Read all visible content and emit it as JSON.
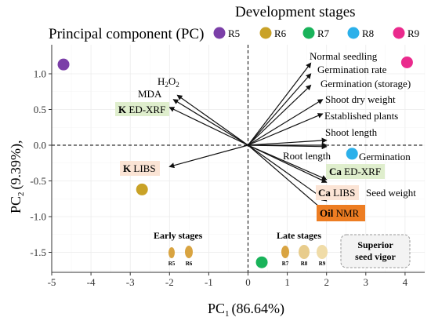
{
  "legend": {
    "title": "Development stages",
    "stages": [
      {
        "label": "R5",
        "color": "#7b3fa8"
      },
      {
        "label": "R6",
        "color": "#c9a227"
      },
      {
        "label": "R7",
        "color": "#19b35a"
      },
      {
        "label": "R8",
        "color": "#2bb0ea"
      },
      {
        "label": "R9",
        "color": "#ea2a8d"
      }
    ]
  },
  "chart_data": {
    "type": "scatter",
    "subtitle": "Principal component (PC)",
    "xlabel": "PC",
    "xlabel_sub": "1",
    "xlabel_pct": "(86.64%)",
    "ylabel": "PC",
    "ylabel_sub": "2",
    "ylabel_pct": "(9.39%),",
    "xlim": [
      -5,
      10.5
    ],
    "ylim": [
      -1.7,
      1.3
    ],
    "xticks": [
      "-5",
      "-4",
      "-3",
      "-2",
      "-1",
      "0",
      "1",
      "2",
      "3",
      "4"
    ],
    "xtick_values": [
      -5,
      -4,
      -3,
      -2,
      -1,
      0,
      1,
      2,
      3,
      4
    ],
    "yticks": [
      "1.0",
      "0.5",
      "0.0",
      "-0.5",
      "-1.0",
      "-1.5"
    ],
    "ytick_values": [
      1.0,
      0.5,
      0.0,
      -0.5,
      -1.0,
      -1.5
    ],
    "grid": true,
    "points": [
      {
        "stage": "R5",
        "x": -4.7,
        "y": 1.13,
        "color": "#7b3fa8"
      },
      {
        "stage": "R6",
        "x": -2.7,
        "y": -0.62,
        "color": "#c9a227"
      },
      {
        "stage": "R7",
        "x": 0.35,
        "y": -1.64,
        "color": "#19b35a"
      },
      {
        "stage": "R8",
        "x": 2.65,
        "y": -0.12,
        "color": "#2bb0ea"
      },
      {
        "stage": "R9",
        "x": 4.05,
        "y": 1.16,
        "color": "#ea2a8d"
      }
    ],
    "loadings": [
      {
        "name": "Normal seedling",
        "x": 1.6,
        "y": 1.15
      },
      {
        "name": "Germination rate",
        "x": 1.6,
        "y": 1.0
      },
      {
        "name": "Germination (storage)",
        "x": 1.6,
        "y": 0.84
      },
      {
        "name": "Shoot dry weight",
        "x": 1.9,
        "y": 0.64
      },
      {
        "name": "Established plants",
        "x": 1.9,
        "y": 0.44
      },
      {
        "name": "Shoot length",
        "x": 2.0,
        "y": 0.07
      },
      {
        "name": "Germination",
        "x": 2.0,
        "y": 0.0
      },
      {
        "name": "Root length",
        "x": 2.0,
        "y": -0.02
      },
      {
        "name": "Ca ED-XRF",
        "x": 2.0,
        "y": -0.48
      },
      {
        "name": "Seed weight",
        "x": 2.0,
        "y": -0.52
      },
      {
        "name": "Ca LIBS",
        "x": 2.0,
        "y": -0.78
      },
      {
        "name": "Oil NMR",
        "x": 2.0,
        "y": -0.95
      },
      {
        "name": "H2O2",
        "x": -1.8,
        "y": 0.7
      },
      {
        "name": "MDA",
        "x": -1.9,
        "y": 0.64
      },
      {
        "name": "K ED-XRF",
        "x": -2.0,
        "y": 0.53
      },
      {
        "name": "K LIBS",
        "x": -2.0,
        "y": -0.3
      }
    ]
  },
  "labels": {
    "normal_seedling": "Normal seedling",
    "germination_rate": "Germination rate",
    "germination_storage": "Germination (storage)",
    "shoot_dry_weight": "Shoot dry weight",
    "established_plants": "Established plants",
    "shoot_length": "Shoot length",
    "germination": "Germination",
    "root_length": "Root length",
    "seed_weight": "Seed weight",
    "h2o2_main": "H",
    "h2o2_sub1": "2",
    "h2o2_o": "O",
    "h2o2_sub2": "2",
    "mda": "MDA",
    "k_edxrf_elem": "K",
    "k_edxrf_method": " ED-XRF",
    "k_libs_elem": "K",
    "k_libs_method": " LIBS",
    "ca_edxrf_elem": "Ca",
    "ca_edxrf_method": " ED-XRF",
    "ca_libs_elem": "Ca",
    "ca_libs_method": " LIBS",
    "oil_elem": "Oil",
    "oil_method": " NMR"
  },
  "annotations": {
    "early_stages": "Early stages",
    "late_stages": "Late stages",
    "superior_line1": "Superior",
    "superior_line2": "seed vigor",
    "seed_r5": "R5",
    "seed_r6": "R6",
    "seed_r7": "R7",
    "seed_r8": "R8",
    "seed_r9": "R9"
  },
  "colors": {
    "k_box": "#dfeecd",
    "ca_box": "#dfeecd",
    "k_libs_box": "#fbe4d5",
    "ca_libs_box": "#fbe4d5",
    "oil_box": "#ed7d22",
    "seed_fill": "#d9a441"
  }
}
